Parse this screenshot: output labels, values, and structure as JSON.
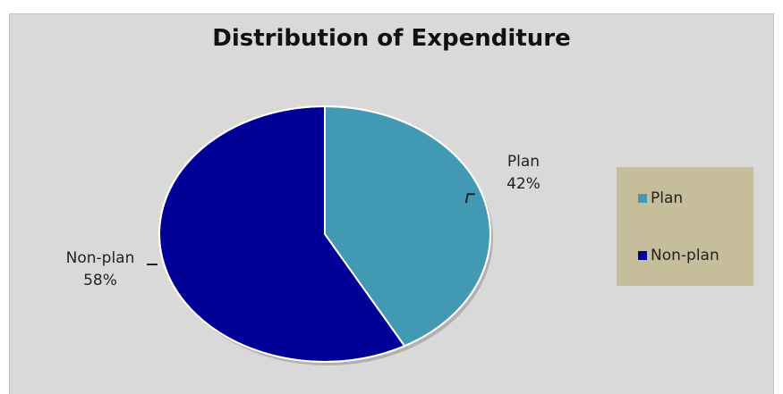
{
  "chart_data": {
    "type": "pie",
    "title": "Distribution of Expenditure",
    "slices": [
      {
        "name": "Plan",
        "value": 42,
        "label": "42%",
        "color": "#4299b4"
      },
      {
        "name": "Non-plan",
        "value": 58,
        "label": "58%",
        "color": "#000096"
      }
    ],
    "legend": {
      "placement": "right",
      "entries": [
        "Plan",
        "Non-plan"
      ]
    }
  }
}
